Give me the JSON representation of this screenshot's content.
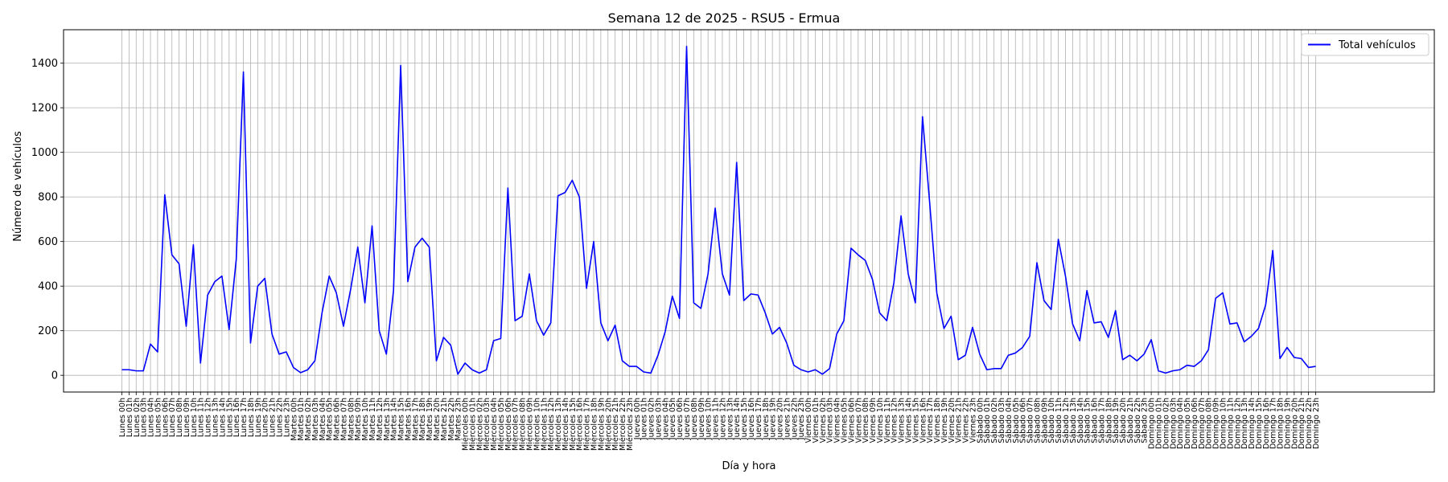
{
  "chart_data": {
    "type": "line",
    "title": "Semana 12 de 2025 - RSU5 - Ermua",
    "xlabel": "Día y hora",
    "ylabel": "Número de vehículos",
    "ylim": [
      -75,
      1550
    ],
    "yticks": [
      0,
      200,
      400,
      600,
      800,
      1000,
      1200,
      1400
    ],
    "grid": true,
    "legend_position": "top-right",
    "days": [
      "Lunes",
      "Martes",
      "Miércoles",
      "Jueves",
      "Viernes",
      "Sábado",
      "Domingo"
    ],
    "hours": [
      "00h",
      "01h",
      "02h",
      "03h",
      "04h",
      "05h",
      "06h",
      "07h",
      "08h",
      "09h",
      "10h",
      "11h",
      "12h",
      "13h",
      "14h",
      "15h",
      "16h",
      "17h",
      "18h",
      "19h",
      "20h",
      "21h",
      "22h",
      "23h"
    ],
    "series": [
      {
        "name": "Total vehículos",
        "color": "#0000ff",
        "values": [
          25,
          25,
          20,
          20,
          140,
          105,
          810,
          540,
          500,
          220,
          585,
          55,
          360,
          420,
          445,
          205,
          520,
          1360,
          145,
          400,
          435,
          185,
          95,
          105,
          35,
          12,
          25,
          65,
          280,
          445,
          370,
          220,
          385,
          575,
          325,
          670,
          200,
          95,
          380,
          1390,
          420,
          575,
          615,
          575,
          65,
          170,
          135,
          5,
          55,
          25,
          10,
          25,
          155,
          165,
          840,
          245,
          265,
          455,
          245,
          180,
          235,
          805,
          820,
          875,
          800,
          390,
          600,
          235,
          155,
          225,
          65,
          40,
          40,
          15,
          10,
          90,
          195,
          355,
          255,
          1475,
          325,
          300,
          455,
          750,
          455,
          360,
          955,
          335,
          365,
          360,
          280,
          185,
          215,
          145,
          45,
          25,
          15,
          25,
          5,
          30,
          185,
          245,
          570,
          540,
          515,
          430,
          280,
          245,
          415,
          715,
          455,
          325,
          1160,
          775,
          370,
          210,
          265,
          70,
          90,
          215,
          95,
          25,
          30,
          30,
          90,
          100,
          125,
          175,
          505,
          335,
          295,
          610,
          445,
          230,
          155,
          380,
          235,
          240,
          170,
          290,
          70,
          90,
          65,
          95,
          160,
          20,
          10,
          20,
          25,
          45,
          40,
          65,
          115,
          345,
          370,
          230,
          235,
          150,
          175,
          210,
          315,
          560,
          75,
          125,
          80,
          75,
          35,
          40
        ]
      }
    ]
  }
}
